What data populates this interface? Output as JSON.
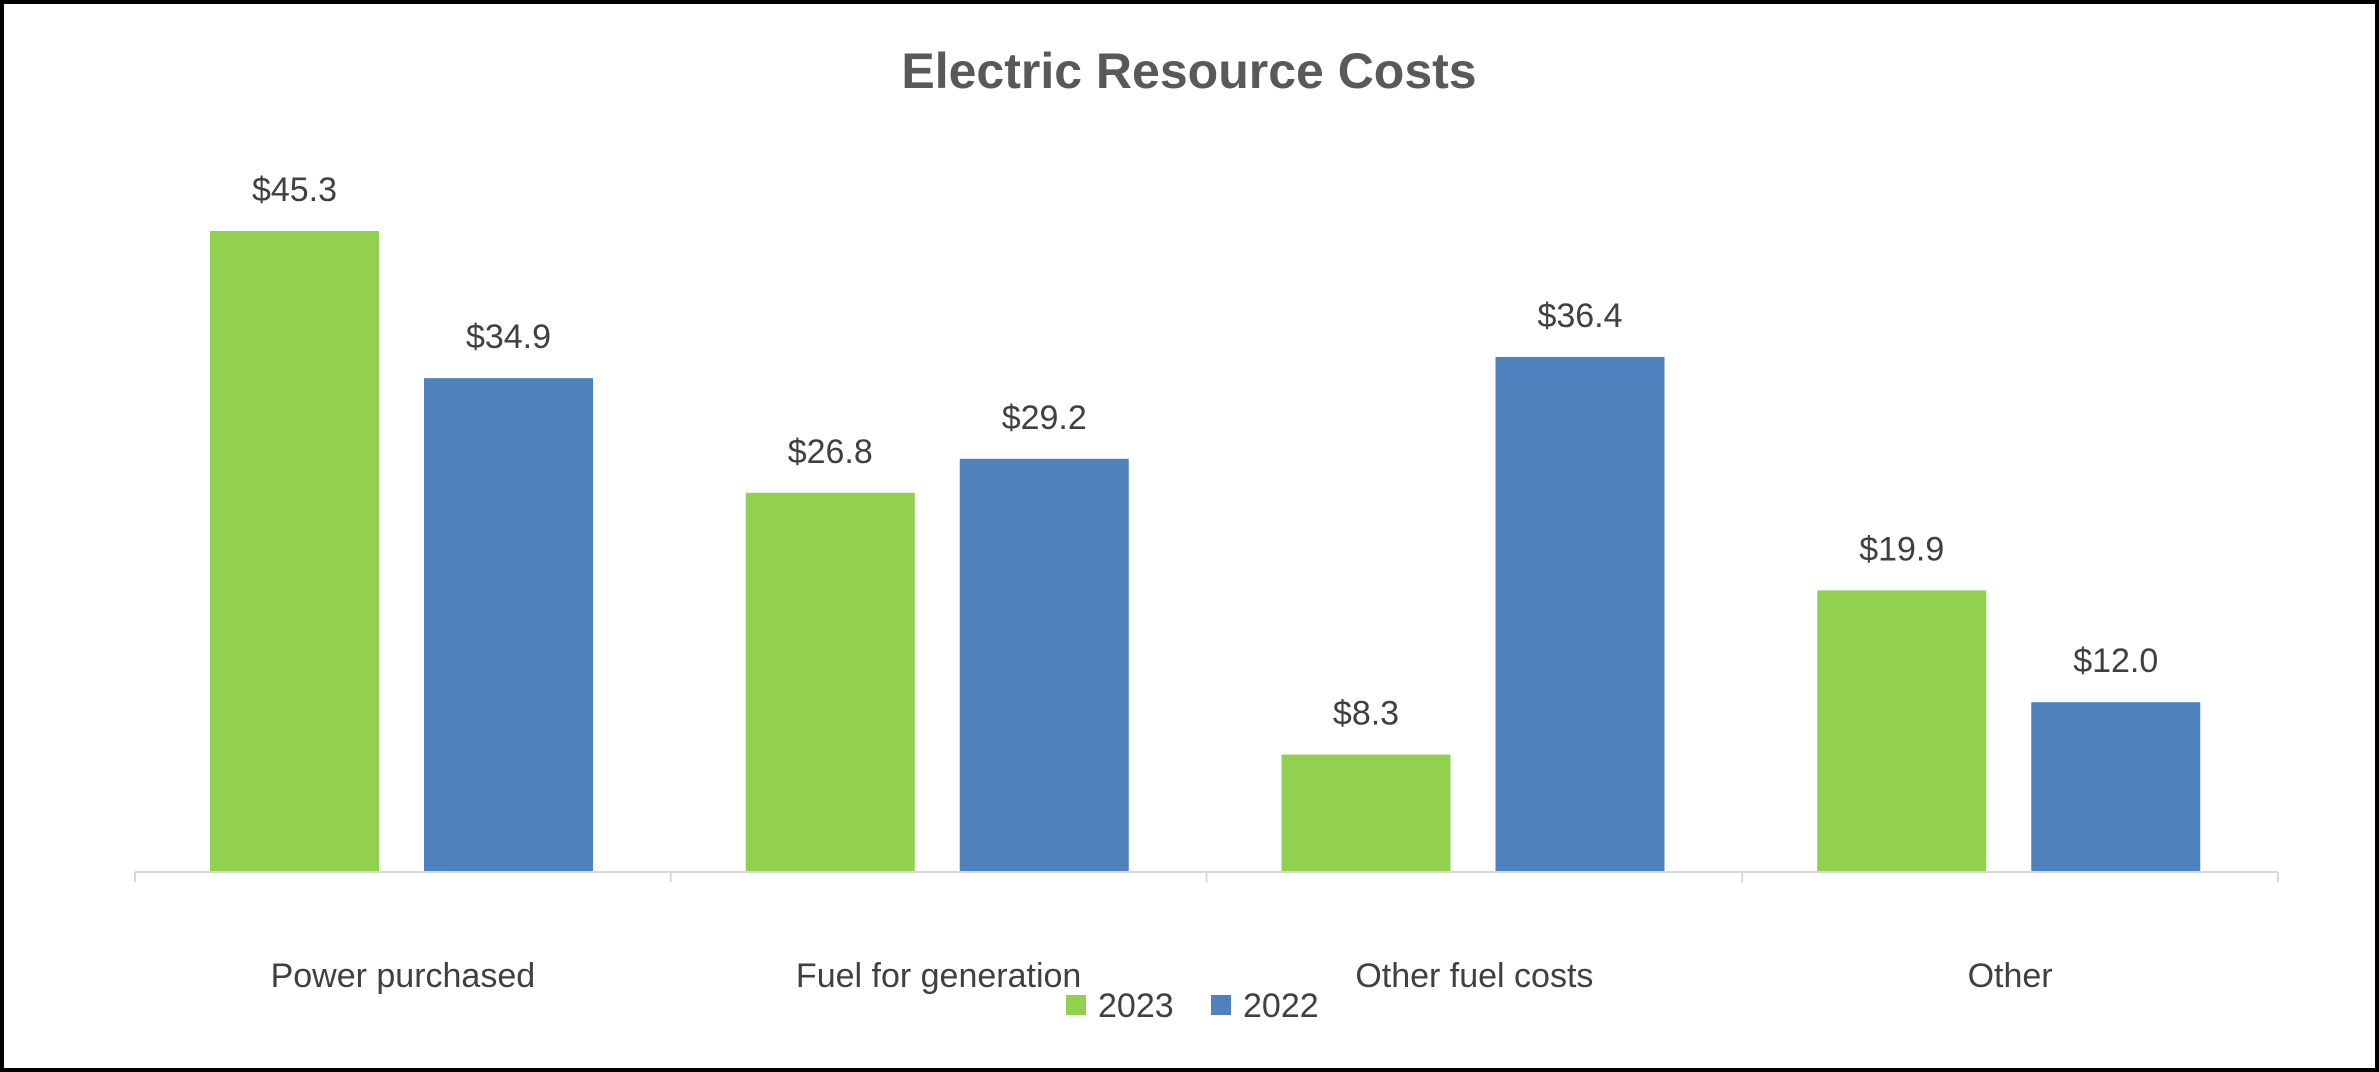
{
  "chart_data": {
    "type": "bar",
    "title": "Electric Resource Costs",
    "xlabel": "",
    "ylabel": "",
    "categories": [
      "Power purchased",
      "Fuel for generation",
      "Other fuel costs",
      "Other"
    ],
    "series": [
      {
        "name": "2023",
        "color": "#92D050",
        "values": [
          45.3,
          26.8,
          8.3,
          19.9
        ],
        "labels": [
          "$45.3",
          "$26.8",
          "$8.3",
          "$19.9"
        ]
      },
      {
        "name": "2022",
        "color": "#4F81BD",
        "values": [
          34.9,
          29.2,
          36.4,
          12.0
        ],
        "labels": [
          "$34.9",
          "$29.2",
          "$36.4",
          "$12.0"
        ]
      }
    ],
    "ylim": [
      0,
      50
    ],
    "grid": false,
    "legend": "bottom-center",
    "value_prefix": "$",
    "axis_color": "#D9D9D9"
  }
}
